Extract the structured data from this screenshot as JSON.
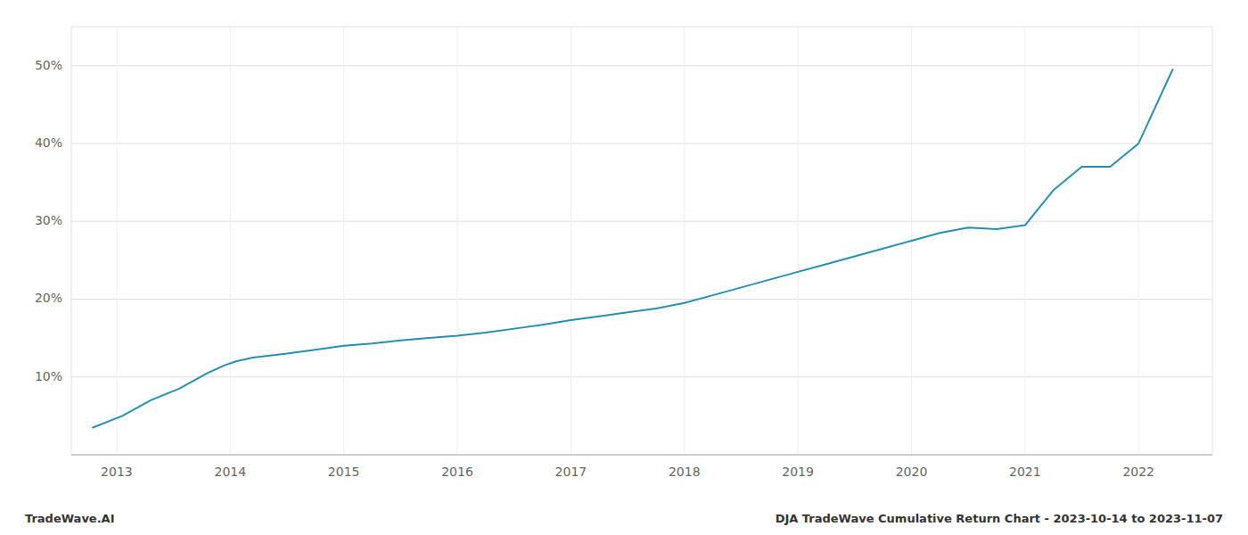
{
  "chart_data": {
    "type": "line",
    "x": [
      2012.79,
      2013.05,
      2013.3,
      2013.55,
      2013.8,
      2013.95,
      2014.05,
      2014.2,
      2014.5,
      2014.75,
      2015.0,
      2015.25,
      2015.5,
      2015.75,
      2016.0,
      2016.25,
      2016.5,
      2016.75,
      2017.0,
      2017.25,
      2017.5,
      2017.75,
      2018.0,
      2018.25,
      2018.5,
      2018.75,
      2019.0,
      2019.25,
      2019.5,
      2019.75,
      2020.0,
      2020.25,
      2020.5,
      2020.75,
      2021.0,
      2021.25,
      2021.5,
      2021.75,
      2022.0,
      2022.3
    ],
    "values": [
      3.5,
      5.0,
      7.0,
      8.5,
      10.5,
      11.5,
      12.0,
      12.5,
      13.0,
      13.5,
      14.0,
      14.3,
      14.7,
      15.0,
      15.3,
      15.7,
      16.2,
      16.7,
      17.3,
      17.8,
      18.3,
      18.8,
      19.5,
      20.5,
      21.5,
      22.5,
      23.5,
      24.5,
      25.5,
      26.5,
      27.5,
      28.5,
      29.2,
      29.0,
      29.5,
      34.0,
      37.0,
      37.0,
      40.0,
      49.5
    ],
    "color": "#2790b0",
    "xlim": [
      2012.6,
      2022.65
    ],
    "xticks": [
      2013,
      2014,
      2015,
      2016,
      2017,
      2018,
      2019,
      2020,
      2021,
      2022
    ],
    "ylim": [
      0,
      55
    ],
    "yticks": [
      {
        "value": 10,
        "label": "10%"
      },
      {
        "value": 20,
        "label": "20%"
      },
      {
        "value": 30,
        "label": "30%"
      },
      {
        "value": 40,
        "label": "40%"
      },
      {
        "value": 50,
        "label": "50%"
      }
    ],
    "grid": true,
    "annotations": [
      "TradeWave.AI",
      "DJA TradeWave Cumulative Return Chart - 2023-10-14 to 2023-11-07"
    ]
  }
}
